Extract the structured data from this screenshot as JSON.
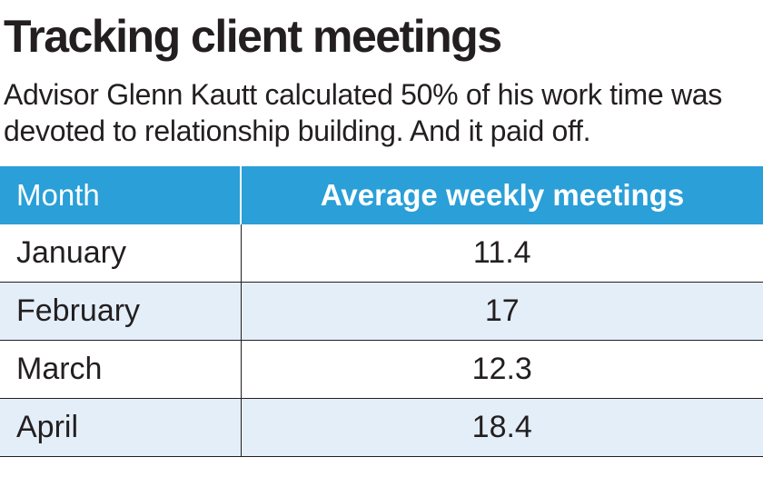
{
  "title": "Tracking client meetings",
  "subtitle": "Advisor Glenn Kautt calculated 50% of his work time was devoted to relationship building. And it paid off.",
  "colors": {
    "header_bg": "#2a9fd8",
    "header_text": "#ffffff",
    "alt_row_bg": "#e3eef8",
    "text": "#231f20"
  },
  "chart_data": {
    "type": "table",
    "columns": [
      "Month",
      "Average weekly meetings"
    ],
    "rows": [
      {
        "month": "January",
        "value": "11.4"
      },
      {
        "month": "February",
        "value": "17"
      },
      {
        "month": "March",
        "value": "12.3"
      },
      {
        "month": "April",
        "value": "18.4"
      }
    ]
  }
}
